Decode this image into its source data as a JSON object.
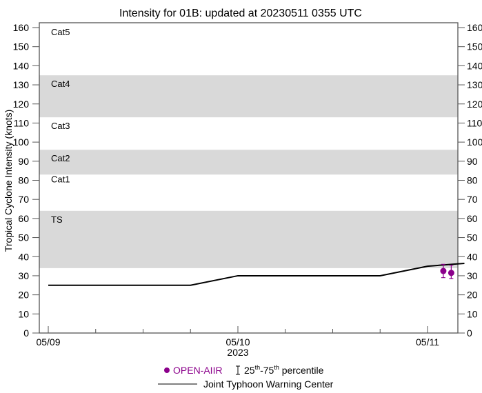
{
  "chart_data": {
    "type": "line",
    "title": "Intensity for 01B: updated at 20230511 0355 UTC",
    "xlabel": "2023",
    "ylabel": "Tropical Cyclone Intensity (knots)",
    "x_tick_labels": [
      "05/09",
      "05/10",
      "05/11"
    ],
    "xlim": [
      "2023-05-09 00:00",
      "2023-05-11 04:40"
    ],
    "ylim": [
      0,
      160
    ],
    "y_ticks": [
      0,
      10,
      20,
      30,
      40,
      50,
      60,
      70,
      80,
      90,
      100,
      110,
      120,
      130,
      140,
      150,
      160
    ],
    "grid": false,
    "category_bands": [
      {
        "label": "TS",
        "range": [
          34,
          64
        ],
        "shaded": true
      },
      {
        "label": "Cat1",
        "range": [
          64,
          83
        ],
        "shaded": false
      },
      {
        "label": "Cat2",
        "range": [
          83,
          96
        ],
        "shaded": true
      },
      {
        "label": "Cat3",
        "range": [
          96,
          113
        ],
        "shaded": false
      },
      {
        "label": "Cat4",
        "range": [
          113,
          135
        ],
        "shaded": true
      },
      {
        "label": "Cat5",
        "range": [
          135,
          160
        ],
        "shaded": false
      }
    ],
    "series": [
      {
        "name": "Joint Typhoon Warning Center",
        "kind": "line",
        "color": "#000000",
        "points": [
          [
            "2023-05-09 00:00",
            25
          ],
          [
            "2023-05-09 18:00",
            25
          ],
          [
            "2023-05-10 00:00",
            30
          ],
          [
            "2023-05-10 18:00",
            30
          ],
          [
            "2023-05-11 00:00",
            35
          ],
          [
            "2023-05-11 04:40",
            36.5
          ]
        ]
      },
      {
        "name": "OPEN-AIIR",
        "kind": "scatter",
        "color": "#8b008b",
        "points": [
          {
            "x": "2023-05-11 02:00",
            "y": 32.5,
            "p25": 29,
            "p75": 36
          },
          {
            "x": "2023-05-11 03:00",
            "y": 31.5,
            "p25": 28.5,
            "p75": 35.5
          }
        ]
      }
    ],
    "legend": {
      "placement": "bottom",
      "open_aiir": "OPEN-AIIR",
      "pct_a": "25",
      "pct_sup1": "th",
      "pct_b": "-75",
      "pct_sup2": "th",
      "pct_c": " percentile",
      "jtwc": "Joint Typhoon Warning Center"
    }
  }
}
